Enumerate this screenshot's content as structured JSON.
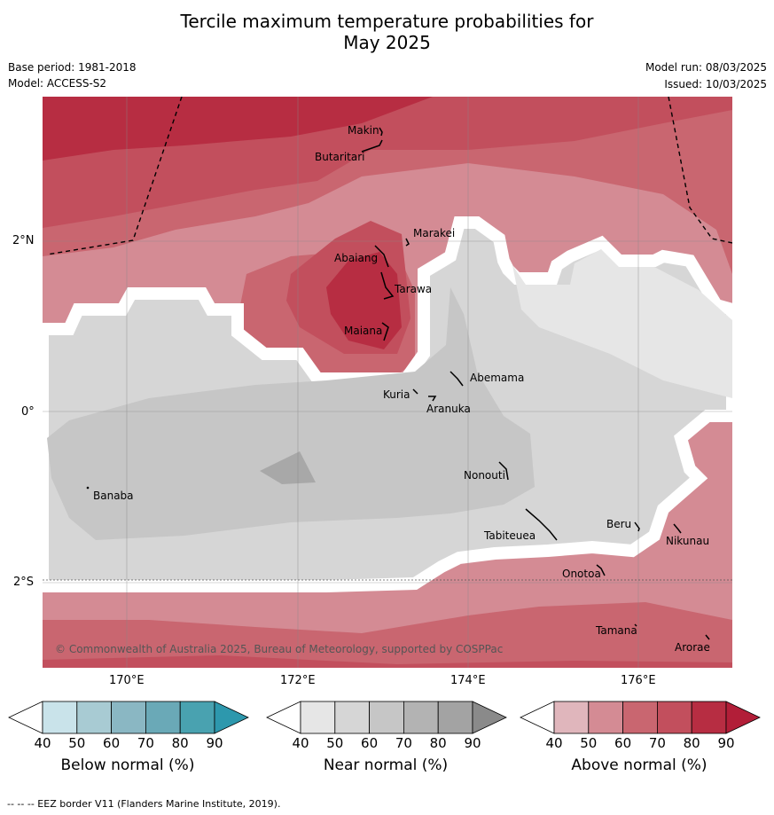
{
  "title_line1": "Tercile maximum temperature probabilities for",
  "title_line2": "May 2025",
  "meta": {
    "base_period": "Base period: 1981-2018",
    "model": "Model: ACCESS-S2",
    "model_run": "Model run: 08/03/2025",
    "issued": "Issued: 10/03/2025"
  },
  "map": {
    "lon_labels": [
      "170°E",
      "172°E",
      "174°E",
      "176°E"
    ],
    "lat_labels": [
      "2°N",
      "0°",
      "2°S"
    ],
    "places": [
      "Makin",
      "Butaritari",
      "Marakei",
      "Abaiang",
      "Tarawa",
      "Maiana",
      "Abemama",
      "Kuria",
      "Aranuka",
      "Banaba",
      "Nonouti",
      "Beru",
      "Tabiteuea",
      "Nikunau",
      "Onotoa",
      "Tamana",
      "Arorae"
    ],
    "copyright": "© Commonwealth of Australia 2025, Bureau of Meteorology, supported by COSPPac",
    "colors": {
      "above_50": "#e0b6bc",
      "above_60": "#d48b94",
      "above_70": "#c96670",
      "above_80": "#c24f5d",
      "above_90": "#b72d42",
      "near_50": "#e6e6e6",
      "near_60": "#d6d6d6",
      "near_70": "#c6c6c6",
      "near_80": "#a8a8a8",
      "below_50": "#c9e3ea",
      "below_60": "#a8cbd3",
      "below_70": "#8ab7c3",
      "below_80": "#6aa9b7",
      "below_90": "#49a2b0",
      "below_ext": "#2d98ad"
    }
  },
  "colorbars": [
    {
      "title": "Below normal (%)",
      "ticks": [
        "40",
        "50",
        "60",
        "70",
        "80",
        "90"
      ],
      "colors": [
        "#c9e3ea",
        "#a8cbd3",
        "#8ab7c3",
        "#6aa9b7",
        "#49a2b0"
      ],
      "ext": "#2d98ad"
    },
    {
      "title": "Near normal (%)",
      "ticks": [
        "40",
        "50",
        "60",
        "70",
        "80",
        "90"
      ],
      "colors": [
        "#e6e6e6",
        "#d6d6d6",
        "#c6c6c6",
        "#b3b3b3",
        "#a3a3a3"
      ],
      "ext": "#8a8a8a"
    },
    {
      "title": "Above normal (%)",
      "ticks": [
        "40",
        "50",
        "60",
        "70",
        "80",
        "90"
      ],
      "colors": [
        "#e0b6bc",
        "#d48b94",
        "#c96670",
        "#c24f5d",
        "#b72d42"
      ],
      "ext": "#b21e38"
    }
  ],
  "footer": "--  --  -- EEZ border V11 (Flanders Marine Institute, 2019)."
}
